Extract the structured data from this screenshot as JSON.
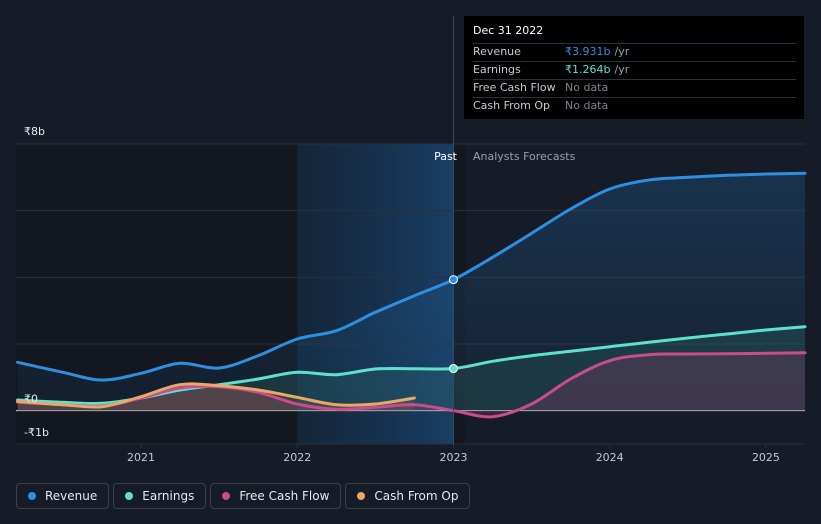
{
  "tooltip": {
    "date": "Dec 31 2022",
    "rows": [
      {
        "label": "Revenue",
        "value": "₹3.931b",
        "unit": "/yr",
        "color": "#2e8fe0"
      },
      {
        "label": "Earnings",
        "value": "₹1.264b",
        "unit": "/yr",
        "color": "#5ee0cf"
      },
      {
        "label": "Free Cash Flow",
        "value": "No data",
        "unit": "",
        "color": ""
      },
      {
        "label": "Cash From Op",
        "value": "No data",
        "unit": "",
        "color": ""
      }
    ]
  },
  "regions": {
    "past": "Past",
    "forecast": "Analysts Forecasts"
  },
  "legend": [
    {
      "label": "Revenue",
      "color": "#2e8fe0"
    },
    {
      "label": "Earnings",
      "color": "#5ee0cf"
    },
    {
      "label": "Free Cash Flow",
      "color": "#c94c8c"
    },
    {
      "label": "Cash From Op",
      "color": "#e8a866"
    }
  ],
  "chart_data": {
    "type": "line",
    "title": "",
    "xlabel": "",
    "ylabel": "",
    "xlim": [
      2020.2,
      2025.25
    ],
    "ylim": [
      -1,
      8
    ],
    "x_ticks": [
      2021,
      2022,
      2023,
      2024,
      2025
    ],
    "x_tick_labels": [
      "2021",
      "2022",
      "2023",
      "2024",
      "2025"
    ],
    "y_ticks": [
      8,
      0,
      -1
    ],
    "y_tick_labels": [
      "₹8b",
      "₹0",
      "-₹1b"
    ],
    "past_end": 2023.0,
    "highlight_start": 2022.0,
    "series": [
      {
        "name": "Revenue",
        "color": "#2e8fe0",
        "x": [
          2020.21,
          2020.5,
          2020.75,
          2021.0,
          2021.25,
          2021.5,
          2021.75,
          2022.0,
          2022.25,
          2022.5,
          2022.75,
          2023.0,
          2023.25,
          2023.5,
          2023.75,
          2024.0,
          2024.25,
          2024.5,
          2024.75,
          2025.0,
          2025.25
        ],
        "y": [
          1.45,
          1.15,
          0.92,
          1.12,
          1.42,
          1.28,
          1.65,
          2.15,
          2.4,
          2.95,
          3.45,
          3.931,
          4.6,
          5.32,
          6.05,
          6.65,
          6.92,
          7.0,
          7.06,
          7.1,
          7.12
        ]
      },
      {
        "name": "Earnings",
        "color": "#5ee0cf",
        "x": [
          2020.21,
          2020.5,
          2020.75,
          2021.0,
          2021.25,
          2021.5,
          2021.75,
          2022.0,
          2022.25,
          2022.5,
          2022.75,
          2023.0,
          2023.25,
          2023.5,
          2023.75,
          2024.0,
          2024.25,
          2024.5,
          2024.75,
          2025.0,
          2025.25
        ],
        "y": [
          0.32,
          0.25,
          0.22,
          0.38,
          0.62,
          0.78,
          0.95,
          1.15,
          1.08,
          1.25,
          1.26,
          1.264,
          1.48,
          1.65,
          1.78,
          1.92,
          2.05,
          2.18,
          2.3,
          2.42,
          2.52
        ]
      },
      {
        "name": "Free Cash Flow",
        "color": "#c94c8c",
        "x": [
          2020.21,
          2020.5,
          2020.75,
          2021.0,
          2021.25,
          2021.5,
          2021.75,
          2022.0,
          2022.25,
          2022.5,
          2022.75,
          2023.0,
          2023.25,
          2023.5,
          2023.75,
          2024.0,
          2024.25,
          2024.5,
          2024.75,
          2025.0,
          2025.25
        ],
        "y": [
          0.25,
          0.18,
          0.14,
          0.38,
          0.68,
          0.72,
          0.55,
          0.2,
          0.04,
          0.1,
          0.18,
          0.0,
          -0.18,
          0.2,
          0.95,
          1.5,
          1.68,
          1.7,
          1.71,
          1.72,
          1.74
        ]
      },
      {
        "name": "Cash From Op",
        "color": "#e8a866",
        "x": [
          2020.21,
          2020.5,
          2020.75,
          2021.0,
          2021.25,
          2021.5,
          2021.75,
          2022.0,
          2022.25,
          2022.5,
          2022.75
        ],
        "y": [
          0.28,
          0.18,
          0.12,
          0.42,
          0.78,
          0.75,
          0.62,
          0.4,
          0.18,
          0.2,
          0.38
        ]
      }
    ]
  }
}
